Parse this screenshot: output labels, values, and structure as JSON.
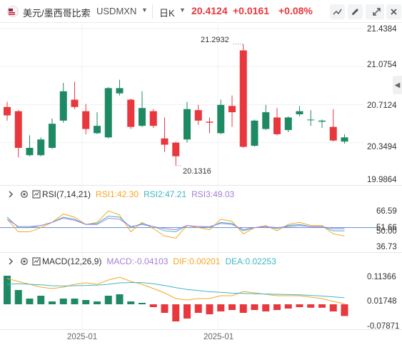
{
  "header": {
    "symbol_name": "美元/墨西哥比索",
    "symbol_code": "USDMXN",
    "period": "日K",
    "price": "20.4124",
    "change": "+0.0161",
    "change_pct": "+0.08%",
    "up_color": "#e8373d",
    "down_color": "#1e8a63",
    "icons": [
      "mexico-flag-icon",
      "chevron-down-icon",
      "drawing-line-icon",
      "pencil-icon",
      "indicator-settings-icon",
      "expand-fullscreen-icon",
      "close-icon"
    ]
  },
  "main_chart": {
    "y_axis_ticks": [
      "21.4384",
      "21.0754",
      "20.7124",
      "20.3494",
      "19.9864"
    ],
    "high_label": "21.2932",
    "low_label": "20.1316",
    "side_tab_icon": "chevron-left-icon"
  },
  "rsi_panel": {
    "name": "RSI(7,14,21)",
    "rsi1": "RSI1:42.30",
    "rsi2": "RSI2:47.21",
    "rsi3": "RSI3:49.03",
    "colors": {
      "rsi1": "#f5a623",
      "rsi2": "#3fb6c8",
      "rsi3": "#a57fd6"
    },
    "y_axis_ticks": [
      "66.59",
      "51.66",
      "50.00",
      "36.73"
    ]
  },
  "macd_panel": {
    "name": "MACD(12,26,9)",
    "macd": "MACD:-0.04103",
    "dif": "DIF:0.00201",
    "dea": "DEA:0.02253",
    "colors": {
      "macd": "#a57fd6",
      "dif": "#f5a623",
      "dea": "#3fb6c8"
    },
    "y_axis_ticks": [
      "0.11366",
      "0.01748",
      "-0.07871"
    ]
  },
  "x_axis": {
    "labels": [
      "2025-01",
      "2025-01"
    ]
  },
  "chart_data": {
    "type": "candlestick",
    "candles": [
      {
        "o": 20.69,
        "c": 20.61,
        "h": 20.74,
        "l": 20.56
      },
      {
        "o": 20.65,
        "c": 20.3,
        "h": 20.66,
        "l": 20.21
      },
      {
        "o": 20.23,
        "c": 20.3,
        "h": 20.42,
        "l": 20.22
      },
      {
        "o": 20.23,
        "c": 20.38,
        "h": 20.4,
        "l": 20.22
      },
      {
        "o": 20.3,
        "c": 20.53,
        "h": 20.58,
        "l": 20.29
      },
      {
        "o": 20.56,
        "c": 20.84,
        "h": 20.92,
        "l": 20.54
      },
      {
        "o": 20.76,
        "c": 20.69,
        "h": 20.93,
        "l": 20.67
      },
      {
        "o": 20.65,
        "c": 20.48,
        "h": 20.72,
        "l": 20.43
      },
      {
        "o": 20.44,
        "c": 20.51,
        "h": 20.64,
        "l": 20.43
      },
      {
        "o": 20.4,
        "c": 20.87,
        "h": 20.88,
        "l": 20.39
      },
      {
        "o": 20.82,
        "c": 20.87,
        "h": 20.95,
        "l": 20.8
      },
      {
        "o": 20.76,
        "c": 20.5,
        "h": 20.77,
        "l": 20.48
      },
      {
        "o": 20.51,
        "c": 20.68,
        "h": 20.84,
        "l": 20.5
      },
      {
        "o": 20.65,
        "c": 20.51,
        "h": 20.67,
        "l": 20.49
      },
      {
        "o": 20.39,
        "c": 20.33,
        "h": 20.59,
        "l": 20.26
      },
      {
        "o": 20.35,
        "c": 20.22,
        "h": 20.36,
        "l": 20.13
      },
      {
        "o": 20.38,
        "c": 20.67,
        "h": 20.74,
        "l": 20.35
      },
      {
        "o": 20.66,
        "c": 20.56,
        "h": 20.71,
        "l": 20.52
      },
      {
        "o": 20.55,
        "c": 20.54,
        "h": 20.59,
        "l": 20.44
      },
      {
        "o": 20.44,
        "c": 20.71,
        "h": 20.76,
        "l": 20.43
      },
      {
        "o": 20.7,
        "c": 20.64,
        "h": 20.8,
        "l": 20.5
      },
      {
        "o": 21.23,
        "c": 20.31,
        "h": 21.29,
        "l": 20.3
      },
      {
        "o": 20.32,
        "c": 20.56,
        "h": 20.57,
        "l": 20.31
      },
      {
        "o": 20.48,
        "c": 20.64,
        "h": 20.71,
        "l": 20.47
      },
      {
        "o": 20.59,
        "c": 20.43,
        "h": 20.68,
        "l": 20.42
      },
      {
        "o": 20.47,
        "c": 20.59,
        "h": 20.6,
        "l": 20.45
      },
      {
        "o": 20.62,
        "c": 20.65,
        "h": 20.7,
        "l": 20.6
      },
      {
        "o": 20.57,
        "c": 20.57,
        "h": 20.66,
        "l": 20.51
      },
      {
        "o": 20.55,
        "c": 20.56,
        "h": 20.57,
        "l": 20.49
      },
      {
        "o": 20.5,
        "c": 20.37,
        "h": 20.67,
        "l": 20.36
      },
      {
        "o": 20.36,
        "c": 20.4,
        "h": 20.43,
        "l": 20.34
      }
    ],
    "rsi": {
      "rsi1": [
        58,
        46,
        46,
        50,
        55,
        63,
        60,
        53,
        55,
        66,
        62,
        46,
        55,
        49,
        42,
        40,
        52,
        50,
        48,
        58,
        56,
        44,
        50,
        52,
        47,
        53,
        55,
        52,
        52,
        44,
        42
      ],
      "rsi2": [
        60,
        50,
        50,
        52,
        55,
        60,
        58,
        53,
        54,
        61,
        60,
        50,
        54,
        51,
        47,
        46,
        52,
        51,
        50,
        55,
        54,
        47,
        50,
        51,
        49,
        52,
        53,
        51,
        51,
        47,
        47
      ],
      "rsi3": [
        58,
        51,
        51,
        52,
        55,
        59,
        57,
        53,
        53,
        59,
        58,
        51,
        53,
        51,
        49,
        48,
        52,
        51,
        51,
        54,
        53,
        48,
        50,
        51,
        50,
        51,
        52,
        51,
        51,
        49,
        49
      ]
    },
    "macd": {
      "dif": [
        0.09,
        0.08,
        0.07,
        0.06,
        0.055,
        0.06,
        0.07,
        0.075,
        0.07,
        0.085,
        0.095,
        0.08,
        0.07,
        0.055,
        0.04,
        0.02,
        0.015,
        0.02,
        0.02,
        0.03,
        0.03,
        0.045,
        0.04,
        0.035,
        0.03,
        0.03,
        0.03,
        0.025,
        0.02,
        0.01,
        0.002
      ],
      "dea": [
        0.07,
        0.072,
        0.07,
        0.068,
        0.065,
        0.064,
        0.065,
        0.066,
        0.067,
        0.07,
        0.075,
        0.076,
        0.076,
        0.072,
        0.066,
        0.058,
        0.052,
        0.048,
        0.044,
        0.042,
        0.039,
        0.038,
        0.037,
        0.036,
        0.035,
        0.034,
        0.033,
        0.031,
        0.029,
        0.026,
        0.023
      ],
      "hist": [
        0.1,
        0.05,
        0.02,
        0.03,
        0.01,
        0.02,
        0.02,
        0.015,
        0.01,
        0.03,
        0.035,
        0.01,
        0.005,
        -0.01,
        -0.03,
        -0.06,
        -0.05,
        -0.03,
        -0.035,
        -0.025,
        -0.02,
        -0.03,
        -0.02,
        -0.025,
        -0.02,
        -0.015,
        -0.01,
        -0.012,
        -0.012,
        -0.025,
        -0.041
      ]
    }
  }
}
